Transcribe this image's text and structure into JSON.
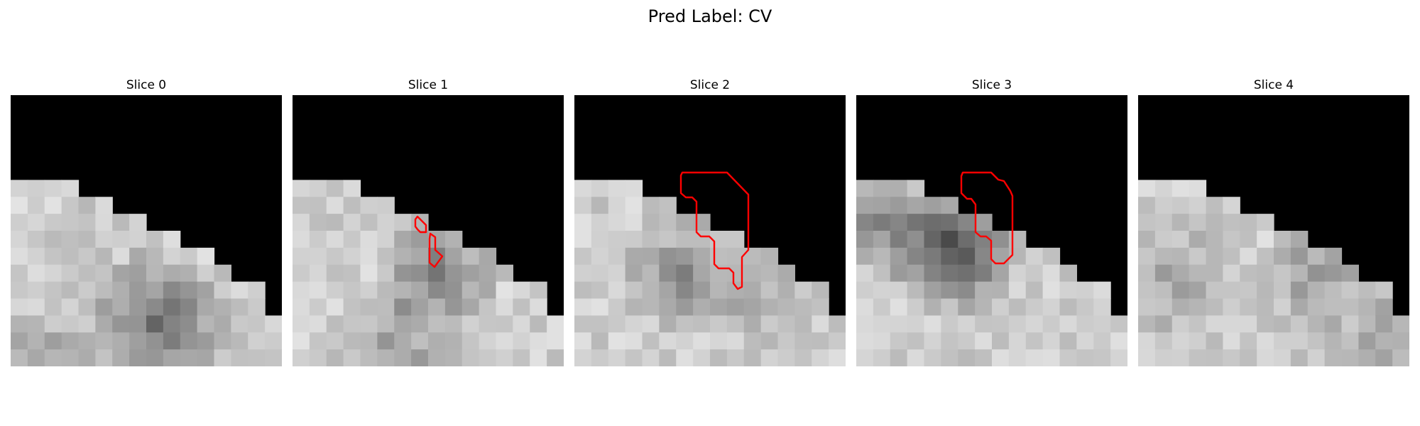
{
  "figure": {
    "title": "Pred Label: CV"
  },
  "slices": [
    {
      "title": "Slice 0",
      "has_contour": false
    },
    {
      "title": "Slice 1",
      "has_contour": true
    },
    {
      "title": "Slice 2",
      "has_contour": true
    },
    {
      "title": "Slice 3",
      "has_contour": true
    },
    {
      "title": "Slice 4",
      "has_contour": false
    }
  ],
  "colors": {
    "background": "#000000",
    "contour": "#ff0000"
  }
}
